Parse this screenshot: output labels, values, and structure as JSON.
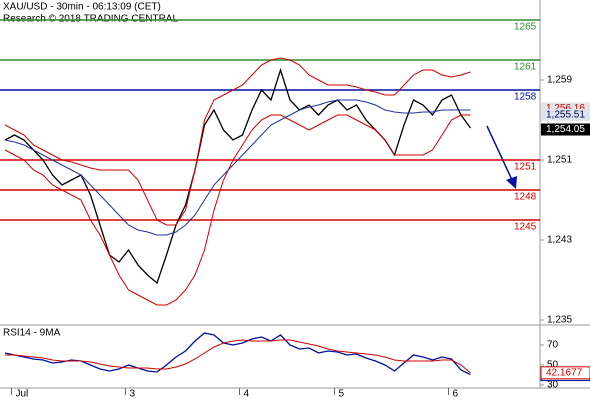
{
  "chart_data": [
    {
      "type": "line",
      "title": "XAU/USD - 30min - 06:13:09 (CET)",
      "subtitle": "Research © 2018 TRADING CENTRAL",
      "categories": [
        null,
        "Jul",
        null,
        null,
        null,
        null,
        null,
        null,
        null,
        null,
        null,
        null,
        null,
        "3",
        null,
        null,
        null,
        null,
        null,
        null,
        null,
        null,
        null,
        null,
        null,
        "4",
        null,
        null,
        null,
        null,
        null,
        null,
        null,
        null,
        null,
        "5",
        null,
        null,
        null,
        null,
        null,
        null,
        null,
        null,
        null,
        null,
        null,
        "6",
        null,
        null
      ],
      "series": [
        {
          "color": "#000000",
          "values": [
            1253,
            1253.5,
            1253,
            1252,
            1251,
            1249.5,
            1248.5,
            1249,
            1249.5,
            1247.5,
            1244.5,
            1241.5,
            1240.8,
            1242,
            1240.5,
            1239.5,
            1238.7,
            1241.5,
            1244.5,
            1246.5,
            1250,
            1254.5,
            1256,
            1254,
            1253,
            1253.5,
            1256,
            1258,
            1257,
            1260,
            1257,
            1256,
            1256.5,
            1255.5,
            1256.5,
            1257,
            1256,
            1256.5,
            1255,
            1254,
            1253,
            1251.5,
            1254.5,
            1257,
            1256.5,
            1255.5,
            1257,
            1257.5,
            1255.5,
            1254.2
          ]
        },
        {
          "color": "#d00000",
          "values": [
            1254.5,
            1254,
            1253.5,
            1252.5,
            1252,
            1251.5,
            1251,
            1250.8,
            1250.5,
            1250.2,
            1250,
            1250,
            1250,
            1250,
            1249,
            1247,
            1245,
            1244.5,
            1244.5,
            1246,
            1250,
            1255,
            1257,
            1257.5,
            1258,
            1258.5,
            1259.5,
            1260.5,
            1261,
            1261.2,
            1261,
            1260.5,
            1259.5,
            1259,
            1258.5,
            1258.5,
            1258.5,
            1258.3,
            1258,
            1257.8,
            1257.5,
            1257.5,
            1258.5,
            1259.5,
            1260,
            1260,
            1259.5,
            1259.3,
            1259.5,
            1259.8
          ]
        },
        {
          "color": "#d00000",
          "values": [
            1252,
            1251.5,
            1251,
            1250,
            1249.5,
            1248.5,
            1248,
            1247.5,
            1247,
            1245,
            1243.5,
            1241.5,
            1239.5,
            1238,
            1237.5,
            1237,
            1236.5,
            1236.5,
            1237,
            1238,
            1239.5,
            1242,
            1246,
            1249,
            1251,
            1252.5,
            1254,
            1255,
            1255.5,
            1255.5,
            1255,
            1254.5,
            1254,
            1254.5,
            1255,
            1255.5,
            1255.5,
            1255,
            1254.5,
            1254,
            1253,
            1251.5,
            1251.5,
            1251.5,
            1251.5,
            1252,
            1253.5,
            1255,
            1255.5,
            1255.5
          ]
        },
        {
          "color": "#2030a0",
          "values": [
            1253,
            1252.8,
            1252.5,
            1252,
            1251.5,
            1251,
            1250.5,
            1250,
            1249.5,
            1248.5,
            1247.5,
            1246.5,
            1245.5,
            1244.5,
            1244,
            1243.8,
            1243.5,
            1243.5,
            1243.8,
            1244.5,
            1245.5,
            1247,
            1248.5,
            1249.5,
            1250.5,
            1251.5,
            1252.5,
            1253.5,
            1254.5,
            1255,
            1255.5,
            1256,
            1256.3,
            1256.5,
            1256.8,
            1257,
            1257,
            1257,
            1256.8,
            1256.5,
            1256,
            1255.8,
            1255.7,
            1255.7,
            1255.8,
            1255.8,
            1256,
            1256,
            1256,
            1256
          ]
        }
      ],
      "levels": {
        "values": [
          1265,
          1261,
          1258,
          1251,
          1248,
          1245
        ],
        "colors": [
          "#2e8b2e",
          "#2e8b2e",
          "#0010a0",
          "#d00000",
          "#d00000",
          "#d00000"
        ]
      },
      "price_tags": [
        {
          "value": 1256.16,
          "label": "1,256.16",
          "color": "#c00000",
          "background": "#e4e4e4"
        },
        {
          "value": 1255.51,
          "label": "1,255.51",
          "color": "#000040",
          "background": "#dde4f0"
        },
        {
          "value": 1254.05,
          "label": "1,254.05",
          "color": "#ffffff",
          "background": "#000000"
        }
      ],
      "ylim": [
        1234.5,
        1267
      ],
      "yticks": [
        {
          "value": 1235,
          "label": "1,235"
        },
        {
          "value": 1243,
          "label": "1,243"
        },
        {
          "value": 1251,
          "label": "1,251"
        },
        {
          "value": 1259,
          "label": "1,259"
        }
      ]
    },
    {
      "type": "line",
      "title": "RSI14 - 9MA",
      "series": [
        {
          "color": "#0010a0",
          "values": [
            62,
            60,
            58,
            56,
            55,
            52,
            53,
            55,
            54,
            50,
            46,
            44,
            46,
            50,
            47,
            44,
            43,
            50,
            58,
            64,
            74,
            82,
            80,
            72,
            70,
            72,
            76,
            78,
            74,
            80,
            70,
            66,
            67,
            62,
            64,
            63,
            60,
            61,
            57,
            54,
            50,
            44,
            52,
            60,
            58,
            55,
            58,
            56,
            45,
            40.4195
          ]
        },
        {
          "color": "#d00000",
          "values": [
            60,
            60,
            59,
            58,
            57,
            55,
            54,
            54,
            54,
            53,
            51,
            49,
            48,
            47,
            47,
            47,
            46,
            46,
            48,
            51,
            56,
            62,
            68,
            72,
            74,
            75,
            74,
            74,
            74,
            75,
            75,
            73,
            71,
            69,
            66,
            64,
            63,
            62,
            61,
            60,
            58,
            55,
            54,
            54,
            54,
            54,
            55,
            55,
            50,
            42.1677
          ]
        }
      ],
      "ylim": [
        27,
        90
      ],
      "yticks": [
        30,
        50,
        70
      ]
    }
  ]
}
